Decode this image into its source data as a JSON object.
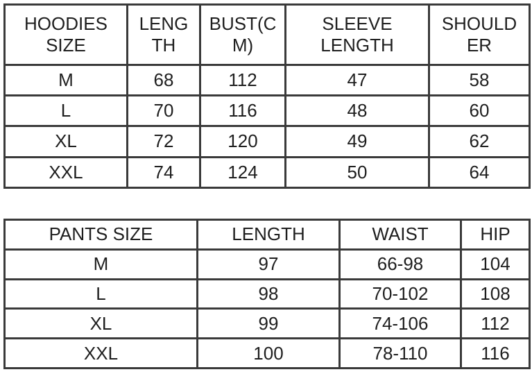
{
  "hoodies": {
    "headers": [
      "HOODIES SIZE",
      "LENGTH",
      "BUST(CM)",
      "SLEEVE LENGTH",
      "SHOULDER"
    ],
    "header_display": [
      "HOODIES\nSIZE",
      "LENG\nTH",
      "BUST(C\nM)",
      "SLEEVE\nLENGTH",
      "SHOULD\nER"
    ],
    "rows": [
      [
        "M",
        "68",
        "112",
        "47",
        "58"
      ],
      [
        "L",
        "70",
        "116",
        "48",
        "60"
      ],
      [
        "XL",
        "72",
        "120",
        "49",
        "62"
      ],
      [
        "XXL",
        "74",
        "124",
        "50",
        "64"
      ]
    ]
  },
  "pants": {
    "headers": [
      "PANTS SIZE",
      "LENGTH",
      "WAIST",
      "HIP"
    ],
    "rows": [
      [
        "M",
        "97",
        "66-98",
        "104"
      ],
      [
        "L",
        "98",
        "70-102",
        "108"
      ],
      [
        "XL",
        "99",
        "74-106",
        "112"
      ],
      [
        "XXL",
        "100",
        "78-110",
        "116"
      ]
    ]
  }
}
